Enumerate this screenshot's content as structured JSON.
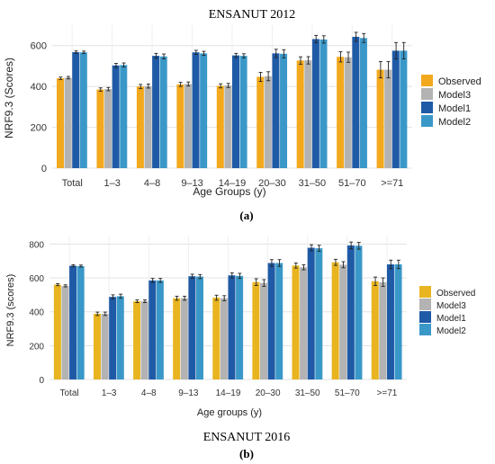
{
  "figure": {
    "label_a": "(a)",
    "label_b": "(b)"
  },
  "chart_data": [
    {
      "type": "bar",
      "title": "ENSANUT 2012",
      "xlabel": "Age Groups (y)",
      "ylabel": "NRF9.3 (Scores)",
      "ylim": [
        0,
        700
      ],
      "yticks": [
        0,
        200,
        400,
        600
      ],
      "grid": true,
      "legend_position": "right",
      "categories": [
        "Total",
        "1–3",
        "4–8",
        "9–13",
        "14–19",
        "20–30",
        "31–50",
        "51–70",
        ">=71"
      ],
      "series": [
        {
          "name": "Observed",
          "color": "#F2A91E",
          "values": [
            440,
            385,
            400,
            410,
            403,
            447,
            527,
            545,
            482
          ],
          "errors": [
            6,
            8,
            10,
            10,
            10,
            22,
            18,
            25,
            40
          ]
        },
        {
          "name": "Model3",
          "color": "#B3B3B3",
          "values": [
            443,
            387,
            402,
            412,
            405,
            450,
            528,
            543,
            482
          ],
          "errors": [
            6,
            8,
            10,
            10,
            10,
            22,
            18,
            25,
            40
          ]
        },
        {
          "name": "Model1",
          "color": "#1F5AA6",
          "values": [
            568,
            503,
            550,
            567,
            552,
            562,
            632,
            643,
            575
          ],
          "errors": [
            6,
            10,
            12,
            10,
            10,
            20,
            18,
            22,
            40
          ]
        },
        {
          "name": "Model2",
          "color": "#3A98C8",
          "values": [
            567,
            505,
            547,
            562,
            550,
            560,
            630,
            637,
            575
          ],
          "errors": [
            6,
            10,
            12,
            10,
            10,
            20,
            18,
            22,
            40
          ]
        }
      ]
    },
    {
      "type": "bar",
      "title": "ENSANUT 2016",
      "xlabel": "Age groups (y)",
      "ylabel": "NRF9.3 (scores)",
      "ylim": [
        0,
        850
      ],
      "yticks": [
        0,
        200,
        400,
        600,
        800
      ],
      "grid": true,
      "legend_position": "right",
      "categories": [
        "Total",
        "1–3",
        "4–8",
        "9–13",
        "14–19",
        "20–30",
        "31–50",
        "51–70",
        ">=71"
      ],
      "series": [
        {
          "name": "Observed",
          "color": "#E8B41F",
          "values": [
            560,
            388,
            462,
            480,
            483,
            575,
            673,
            692,
            580
          ],
          "errors": [
            6,
            10,
            8,
            12,
            15,
            20,
            15,
            18,
            25
          ]
        },
        {
          "name": "Model3",
          "color": "#B3B3B3",
          "values": [
            553,
            388,
            462,
            480,
            480,
            570,
            663,
            678,
            575
          ],
          "errors": [
            6,
            10,
            8,
            12,
            15,
            20,
            15,
            18,
            25
          ]
        },
        {
          "name": "Model1",
          "color": "#1F5AA6",
          "values": [
            672,
            488,
            585,
            610,
            615,
            688,
            778,
            792,
            680
          ],
          "errors": [
            6,
            12,
            12,
            12,
            15,
            20,
            18,
            20,
            25
          ]
        },
        {
          "name": "Model2",
          "color": "#3A98C8",
          "values": [
            670,
            492,
            585,
            608,
            612,
            688,
            775,
            790,
            680
          ],
          "errors": [
            6,
            12,
            12,
            12,
            15,
            20,
            18,
            20,
            25
          ]
        }
      ]
    }
  ]
}
